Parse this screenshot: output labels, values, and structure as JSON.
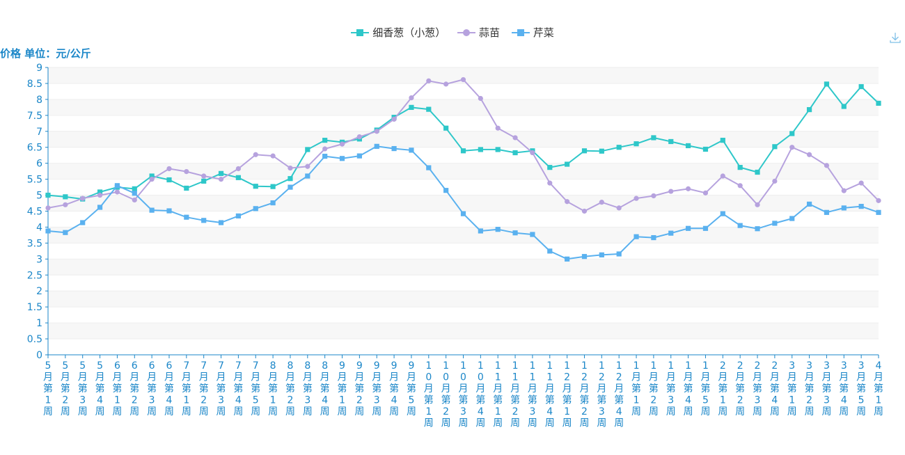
{
  "toolbox": {
    "icon": "download-icon"
  },
  "chart_data": {
    "type": "line",
    "ylabel": "价格 单位：元/公斤",
    "ylim": [
      0,
      9
    ],
    "yticks": [
      "0",
      "0.5",
      "1",
      "1.5",
      "2",
      "2.5",
      "3",
      "3.5",
      "4",
      "4.5",
      "5",
      "5.5",
      "6",
      "6.5",
      "7",
      "7.5",
      "8",
      "8.5",
      "9"
    ],
    "grid": true,
    "legend_position": "top-center",
    "axis_color": "#1a86c8",
    "categories": [
      "5月第1周",
      "5月第2周",
      "5月第3周",
      "5月第4周",
      "6月第1周",
      "6月第2周",
      "6月第3周",
      "6月第4周",
      "7月第1周",
      "7月第2周",
      "7月第3周",
      "7月第4周",
      "7月第5周",
      "8月第1周",
      "8月第2周",
      "8月第3周",
      "8月第4周",
      "9月第1周",
      "9月第2周",
      "9月第3周",
      "9月第4周",
      "9月第5周",
      "10月第1周",
      "10月第2周",
      "10月第3周",
      "10月第4周",
      "11月第1周",
      "11月第2周",
      "11月第3周",
      "11月第4周",
      "12月第1周",
      "12月第2周",
      "12月第3周",
      "12月第4周",
      "1月第1周",
      "1月第2周",
      "1月第3周",
      "1月第4周",
      "1月第5周",
      "2月第1周",
      "2月第2周",
      "2月第3周",
      "2月第4周",
      "3月第1周",
      "3月第2周",
      "3月第3周",
      "3月第4周",
      "3月第5周",
      "4月第1周"
    ],
    "series": [
      {
        "name": "细香葱（小葱）",
        "color": "#2ec7c9",
        "marker": "square",
        "values": [
          5.0,
          4.95,
          4.88,
          5.1,
          5.25,
          5.2,
          5.6,
          5.48,
          5.22,
          5.44,
          5.68,
          5.55,
          5.28,
          5.27,
          5.52,
          6.43,
          6.72,
          6.66,
          6.76,
          7.04,
          7.44,
          7.75,
          7.69,
          7.1,
          6.39,
          6.43,
          6.43,
          6.33,
          6.39,
          5.87,
          5.97,
          6.39,
          6.38,
          6.5,
          6.61,
          6.8,
          6.68,
          6.55,
          6.44,
          6.72,
          5.87,
          5.72,
          6.52,
          6.93,
          7.68,
          8.48,
          7.78,
          8.4,
          7.88
        ]
      },
      {
        "name": "蒜苗",
        "color": "#b6a2de",
        "marker": "circle",
        "values": [
          4.6,
          4.7,
          4.9,
          5.0,
          5.1,
          4.85,
          5.5,
          5.83,
          5.74,
          5.6,
          5.5,
          5.83,
          6.27,
          6.23,
          5.85,
          5.9,
          6.45,
          6.6,
          6.83,
          7.0,
          7.38,
          8.05,
          8.58,
          8.48,
          8.62,
          8.03,
          7.1,
          6.8,
          6.33,
          5.38,
          4.8,
          4.5,
          4.78,
          4.6,
          4.9,
          4.98,
          5.12,
          5.2,
          5.07,
          5.6,
          5.3,
          4.7,
          5.44,
          6.5,
          6.27,
          5.93,
          5.14,
          5.38,
          4.83
        ]
      },
      {
        "name": "芹菜",
        "color": "#5ab1ef",
        "marker": "square",
        "values": [
          3.88,
          3.83,
          4.14,
          4.62,
          5.3,
          5.06,
          4.53,
          4.51,
          4.31,
          4.21,
          4.14,
          4.35,
          4.58,
          4.76,
          5.25,
          5.6,
          6.22,
          6.15,
          6.23,
          6.53,
          6.46,
          6.41,
          5.86,
          5.15,
          4.42,
          3.88,
          3.93,
          3.82,
          3.77,
          3.25,
          3.0,
          3.08,
          3.13,
          3.16,
          3.7,
          3.67,
          3.81,
          3.96,
          3.96,
          4.42,
          4.05,
          3.95,
          4.12,
          4.27,
          4.72,
          4.46,
          4.6,
          4.65,
          4.46
        ]
      }
    ]
  }
}
